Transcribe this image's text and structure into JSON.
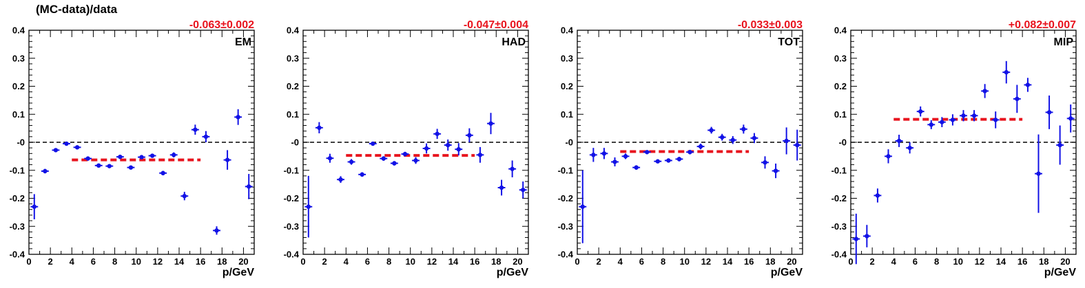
{
  "figure": {
    "y_title": "(MC-data)/data"
  },
  "colors": {
    "points": "#1212e6",
    "fit": "#e8141e",
    "zero_line": "#000000"
  },
  "chart_data": [
    {
      "type": "scatter",
      "label": "EM",
      "fit_label": "-0.063±0.002",
      "fit": {
        "value": -0.063,
        "x_range": [
          4,
          16
        ]
      },
      "xlabel": "p/GeV",
      "xlim": [
        0,
        21
      ],
      "ylim": [
        -0.4,
        0.4
      ],
      "xticks": [
        0,
        2,
        4,
        6,
        8,
        10,
        12,
        14,
        16,
        18,
        20
      ],
      "yticks": [
        -0.4,
        -0.3,
        -0.2,
        -0.1,
        0,
        0.1,
        0.2,
        0.3,
        0.4
      ],
      "ytick_labels": [
        "-0.4",
        "-0.3",
        "-0.2",
        "-0.1",
        "-0",
        "0.1",
        "0.2",
        "0.3",
        "0.4"
      ],
      "grid": false,
      "x": [
        0.5,
        1.5,
        2.5,
        3.5,
        4.5,
        5.5,
        6.5,
        7.5,
        8.5,
        9.5,
        10.5,
        11.5,
        12.5,
        13.5,
        14.5,
        15.5,
        16.5,
        17.5,
        18.5,
        19.5,
        20.5
      ],
      "y": [
        -0.23,
        -0.103,
        -0.028,
        -0.005,
        -0.018,
        -0.058,
        -0.083,
        -0.085,
        -0.052,
        -0.09,
        -0.053,
        -0.048,
        -0.11,
        -0.045,
        -0.192,
        0.045,
        0.02,
        -0.315,
        -0.063,
        0.09,
        -0.158
      ],
      "yerr": [
        0.045,
        0.008,
        0.006,
        0.004,
        0.005,
        0.006,
        0.006,
        0.006,
        0.006,
        0.006,
        0.006,
        0.006,
        0.008,
        0.009,
        0.015,
        0.018,
        0.02,
        0.015,
        0.035,
        0.028,
        0.045
      ]
    },
    {
      "type": "scatter",
      "label": "HAD",
      "fit_label": "-0.047±0.004",
      "fit": {
        "value": -0.047,
        "x_range": [
          4,
          16
        ]
      },
      "xlabel": "p/GeV",
      "xlim": [
        0,
        21
      ],
      "ylim": [
        -0.4,
        0.4
      ],
      "xticks": [
        0,
        2,
        4,
        6,
        8,
        10,
        12,
        14,
        16,
        18,
        20
      ],
      "yticks": [
        -0.4,
        -0.3,
        -0.2,
        -0.1,
        0,
        0.1,
        0.2,
        0.3,
        0.4
      ],
      "ytick_labels": [
        "-0.4",
        "-0.3",
        "-0.2",
        "-0.1",
        "-0",
        "0.1",
        "0.2",
        "0.3",
        "0.4"
      ],
      "grid": false,
      "x": [
        0.5,
        1.5,
        2.5,
        3.5,
        4.5,
        5.5,
        6.5,
        7.5,
        8.5,
        9.5,
        10.5,
        11.5,
        12.5,
        13.5,
        14.5,
        15.5,
        16.5,
        17.5,
        18.5,
        19.5,
        20.5
      ],
      "y": [
        -0.23,
        0.052,
        -0.057,
        -0.133,
        -0.07,
        -0.115,
        -0.005,
        -0.058,
        -0.075,
        -0.042,
        -0.065,
        -0.022,
        0.03,
        -0.01,
        -0.025,
        0.025,
        -0.045,
        0.067,
        -0.162,
        -0.095,
        -0.17
      ],
      "yerr": [
        0.11,
        0.02,
        0.016,
        0.012,
        0.01,
        0.008,
        0.004,
        0.008,
        0.008,
        0.008,
        0.012,
        0.018,
        0.018,
        0.02,
        0.022,
        0.025,
        0.028,
        0.038,
        0.028,
        0.03,
        0.03
      ]
    },
    {
      "type": "scatter",
      "label": "TOT",
      "fit_label": "-0.033±0.003",
      "fit": {
        "value": -0.033,
        "x_range": [
          4,
          16
        ]
      },
      "xlabel": "p/GeV",
      "xlim": [
        0,
        21
      ],
      "ylim": [
        -0.4,
        0.4
      ],
      "xticks": [
        0,
        2,
        4,
        6,
        8,
        10,
        12,
        14,
        16,
        18,
        20
      ],
      "yticks": [
        -0.4,
        -0.3,
        -0.2,
        -0.1,
        0,
        0.1,
        0.2,
        0.3,
        0.4
      ],
      "ytick_labels": [
        "-0.4",
        "-0.3",
        "-0.2",
        "-0.1",
        "-0",
        "0.1",
        "0.2",
        "0.3",
        "0.4"
      ],
      "grid": false,
      "x": [
        0.5,
        1.5,
        2.5,
        3.5,
        4.5,
        5.5,
        6.5,
        7.5,
        8.5,
        9.5,
        10.5,
        11.5,
        12.5,
        13.5,
        14.5,
        15.5,
        16.5,
        17.5,
        18.5,
        19.5,
        20.5
      ],
      "y": [
        -0.23,
        -0.045,
        -0.04,
        -0.07,
        -0.05,
        -0.09,
        -0.035,
        -0.068,
        -0.065,
        -0.06,
        -0.035,
        -0.015,
        0.043,
        0.018,
        0.008,
        0.047,
        0.015,
        -0.072,
        -0.102,
        0.005,
        -0.01
      ],
      "yerr": [
        0.13,
        0.025,
        0.02,
        0.016,
        0.01,
        0.008,
        0.006,
        0.006,
        0.006,
        0.008,
        0.008,
        0.01,
        0.012,
        0.012,
        0.014,
        0.016,
        0.018,
        0.022,
        0.026,
        0.048,
        0.055
      ]
    },
    {
      "type": "scatter",
      "label": "MIP",
      "fit_label": "+0.082±0.007",
      "fit": {
        "value": 0.082,
        "x_range": [
          4,
          16
        ]
      },
      "xlabel": "p/GeV",
      "xlim": [
        0,
        21
      ],
      "ylim": [
        -0.4,
        0.4
      ],
      "xticks": [
        0,
        2,
        4,
        6,
        8,
        10,
        12,
        14,
        16,
        18,
        20
      ],
      "yticks": [
        -0.4,
        -0.3,
        -0.2,
        -0.1,
        0,
        0.1,
        0.2,
        0.3,
        0.4
      ],
      "ytick_labels": [
        "-0.4",
        "-0.3",
        "-0.2",
        "-0.1",
        "-0",
        "0.1",
        "0.2",
        "0.3",
        "0.4"
      ],
      "grid": false,
      "x": [
        0.5,
        1.5,
        2.5,
        3.5,
        4.5,
        5.5,
        6.5,
        7.5,
        8.5,
        9.5,
        10.5,
        11.5,
        12.5,
        13.5,
        14.5,
        15.5,
        16.5,
        17.5,
        18.5,
        19.5,
        20.5
      ],
      "y": [
        -0.345,
        -0.335,
        -0.19,
        -0.05,
        0.005,
        -0.02,
        0.11,
        0.063,
        0.072,
        0.08,
        0.095,
        0.095,
        0.183,
        0.08,
        0.25,
        0.155,
        0.205,
        -0.112,
        0.107,
        -0.01,
        0.085
      ],
      "yerr": [
        0.09,
        0.04,
        0.025,
        0.025,
        0.022,
        0.02,
        0.018,
        0.016,
        0.018,
        0.02,
        0.02,
        0.02,
        0.025,
        0.03,
        0.04,
        0.05,
        0.025,
        0.14,
        0.06,
        0.07,
        0.05
      ]
    }
  ]
}
